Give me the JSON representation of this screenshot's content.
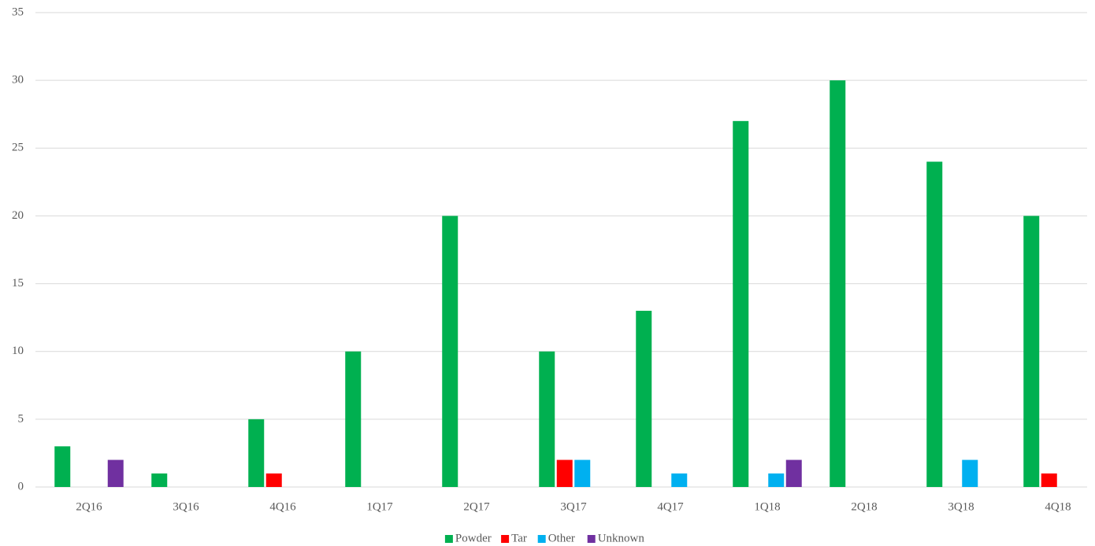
{
  "chart_data": {
    "type": "bar",
    "categories": [
      "2Q16",
      "3Q16",
      "4Q16",
      "1Q17",
      "2Q17",
      "3Q17",
      "4Q17",
      "1Q18",
      "2Q18",
      "3Q18",
      "4Q18"
    ],
    "series": [
      {
        "name": "Powder",
        "color": "#00b050",
        "values": [
          3,
          1,
          5,
          10,
          20,
          10,
          13,
          27,
          30,
          24,
          20
        ]
      },
      {
        "name": "Tar",
        "color": "#ff0000",
        "values": [
          0,
          0,
          1,
          0,
          0,
          2,
          0,
          0,
          0,
          0,
          1
        ]
      },
      {
        "name": "Other",
        "color": "#00b0f0",
        "values": [
          0,
          0,
          0,
          0,
          0,
          2,
          1,
          1,
          0,
          2,
          0
        ]
      },
      {
        "name": "Unknown",
        "color": "#7030a0",
        "values": [
          2,
          0,
          0,
          0,
          0,
          0,
          0,
          2,
          0,
          0,
          0
        ]
      }
    ],
    "ylim": [
      0,
      35
    ],
    "yticks": [
      0,
      5,
      10,
      15,
      20,
      25,
      30,
      35
    ],
    "grid": true,
    "legend": "bottom"
  }
}
